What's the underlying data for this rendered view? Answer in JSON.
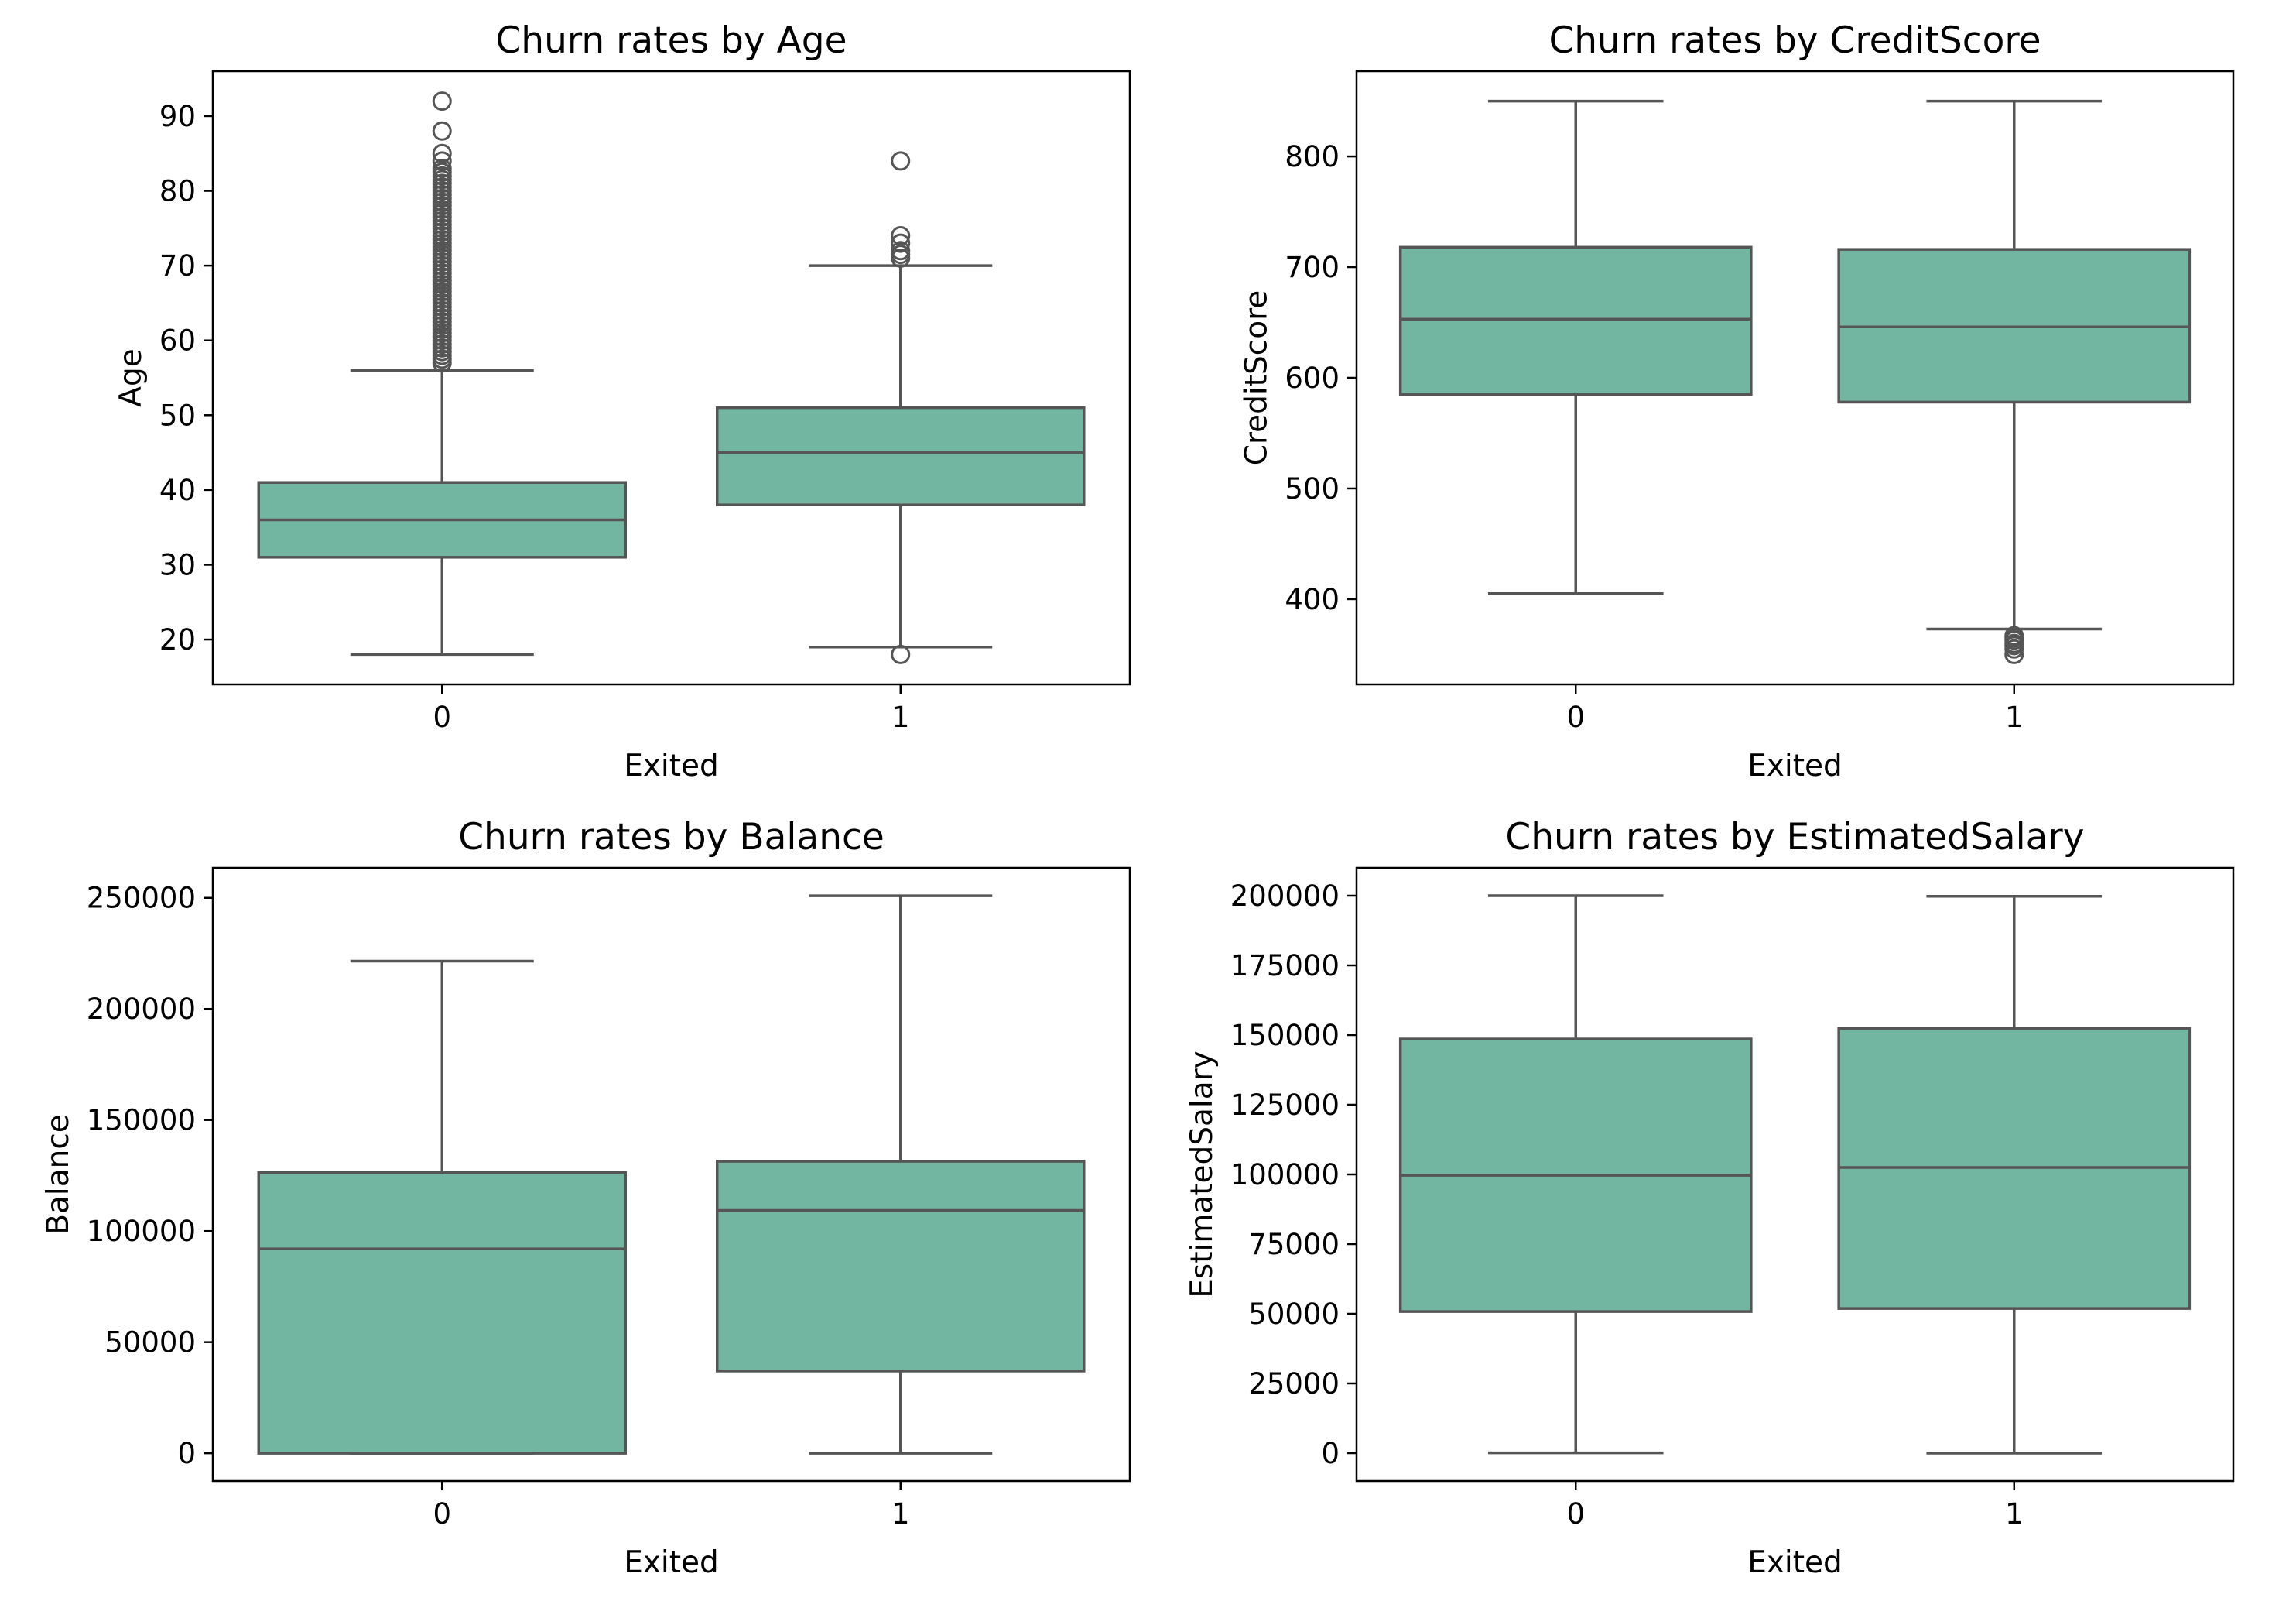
{
  "colors": {
    "box_fill": "#72b6a1",
    "box_line": "#555555",
    "axes_frame": "#000000",
    "background": "#ffffff"
  },
  "chart_data": [
    {
      "type": "box",
      "title": "Churn rates by Age",
      "xlabel": "Exited",
      "ylabel": "Age",
      "categories": [
        "0",
        "1"
      ],
      "ylim": [
        14,
        96
      ],
      "yticks": [
        20,
        30,
        40,
        50,
        60,
        70,
        80,
        90
      ],
      "grid": false,
      "boxes": [
        {
          "category": "0",
          "whislo": 18,
          "q1": 31,
          "median": 36,
          "q3": 41,
          "whishi": 56,
          "fliers": [
            57,
            57.5,
            58,
            58.5,
            59,
            59.5,
            60,
            60.5,
            61,
            61.5,
            62,
            62.5,
            63,
            63.5,
            64,
            64.5,
            65,
            65.5,
            66,
            66.5,
            67,
            67.5,
            68,
            68.5,
            69,
            69.5,
            70,
            70.5,
            71,
            71.5,
            72,
            72.5,
            73,
            73.5,
            74,
            74.5,
            75,
            75.5,
            76,
            76.5,
            77,
            77.5,
            78,
            78.5,
            79,
            79.5,
            80,
            80.5,
            81,
            81.5,
            82,
            82.5,
            83,
            84,
            85,
            88,
            92
          ]
        },
        {
          "category": "1",
          "whislo": 19,
          "q1": 38,
          "median": 45,
          "q3": 51,
          "whishi": 70,
          "fliers": [
            18,
            71,
            71.5,
            72,
            73,
            74,
            84
          ]
        }
      ]
    },
    {
      "type": "box",
      "title": "Churn rates by CreditScore",
      "xlabel": "Exited",
      "ylabel": "CreditScore",
      "categories": [
        "0",
        "1"
      ],
      "ylim": [
        323,
        877
      ],
      "yticks": [
        400,
        500,
        600,
        700,
        800
      ],
      "grid": false,
      "boxes": [
        {
          "category": "0",
          "whislo": 405,
          "q1": 585,
          "median": 653,
          "q3": 718,
          "whishi": 850,
          "fliers": []
        },
        {
          "category": "1",
          "whislo": 373,
          "q1": 578,
          "median": 646,
          "q3": 716,
          "whishi": 850,
          "fliers": [
            350,
            355,
            358,
            360,
            363,
            365,
            367
          ]
        }
      ]
    },
    {
      "type": "box",
      "title": "Churn rates by Balance",
      "xlabel": "Exited",
      "ylabel": "Balance",
      "categories": [
        "0",
        "1"
      ],
      "ylim": [
        -12500,
        263500
      ],
      "yticks": [
        0,
        50000,
        100000,
        150000,
        200000,
        250000
      ],
      "grid": false,
      "boxes": [
        {
          "category": "0",
          "whislo": 0,
          "q1": 0,
          "median": 92000,
          "q3": 126400,
          "whishi": 221500,
          "fliers": []
        },
        {
          "category": "1",
          "whislo": 0,
          "q1": 37000,
          "median": 109300,
          "q3": 131400,
          "whishi": 250900,
          "fliers": []
        }
      ]
    },
    {
      "type": "box",
      "title": "Churn rates by EstimatedSalary",
      "xlabel": "Exited",
      "ylabel": "EstimatedSalary",
      "categories": [
        "0",
        "1"
      ],
      "ylim": [
        -10000,
        210000
      ],
      "yticks": [
        0,
        25000,
        50000,
        75000,
        100000,
        125000,
        150000,
        175000,
        200000
      ],
      "grid": false,
      "boxes": [
        {
          "category": "0",
          "whislo": 90,
          "q1": 50800,
          "median": 99700,
          "q3": 148600,
          "whishi": 199990,
          "fliers": []
        },
        {
          "category": "1",
          "whislo": 12,
          "q1": 51900,
          "median": 102500,
          "q3": 152400,
          "whishi": 199800,
          "fliers": []
        }
      ]
    }
  ]
}
